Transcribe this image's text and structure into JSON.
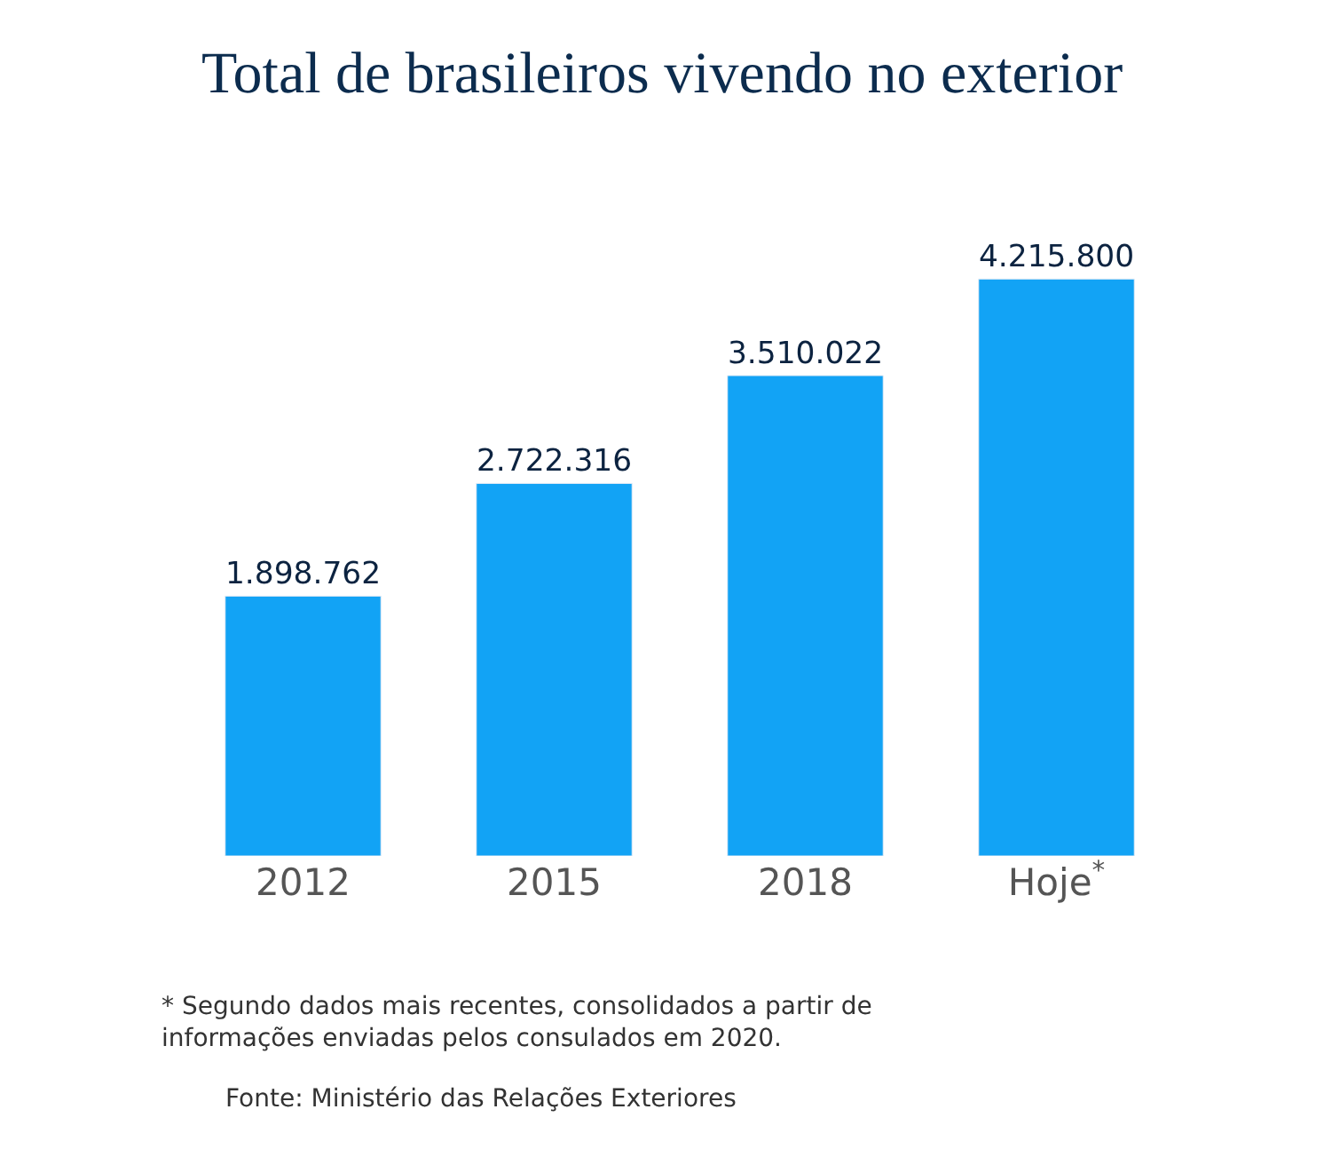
{
  "chart_data": {
    "type": "bar",
    "title": "Total de brasileiros vivendo no exterior",
    "categories": [
      "2012",
      "2015",
      "2018",
      "Hoje$^{*}$"
    ],
    "values": [
      1898762,
      2722316,
      3510022,
      4215800
    ],
    "value_labels": [
      "1.898.762",
      "2.722.316",
      "3.510.022",
      "4.215.800"
    ],
    "color": "#12a3f5",
    "annotations": [
      "* Segundo dados mais recentes, consolidados a partir de\ninformações enviadas pelos consulados em 2020.",
      "Fonte: Ministério das Relações Exteriores"
    ]
  }
}
